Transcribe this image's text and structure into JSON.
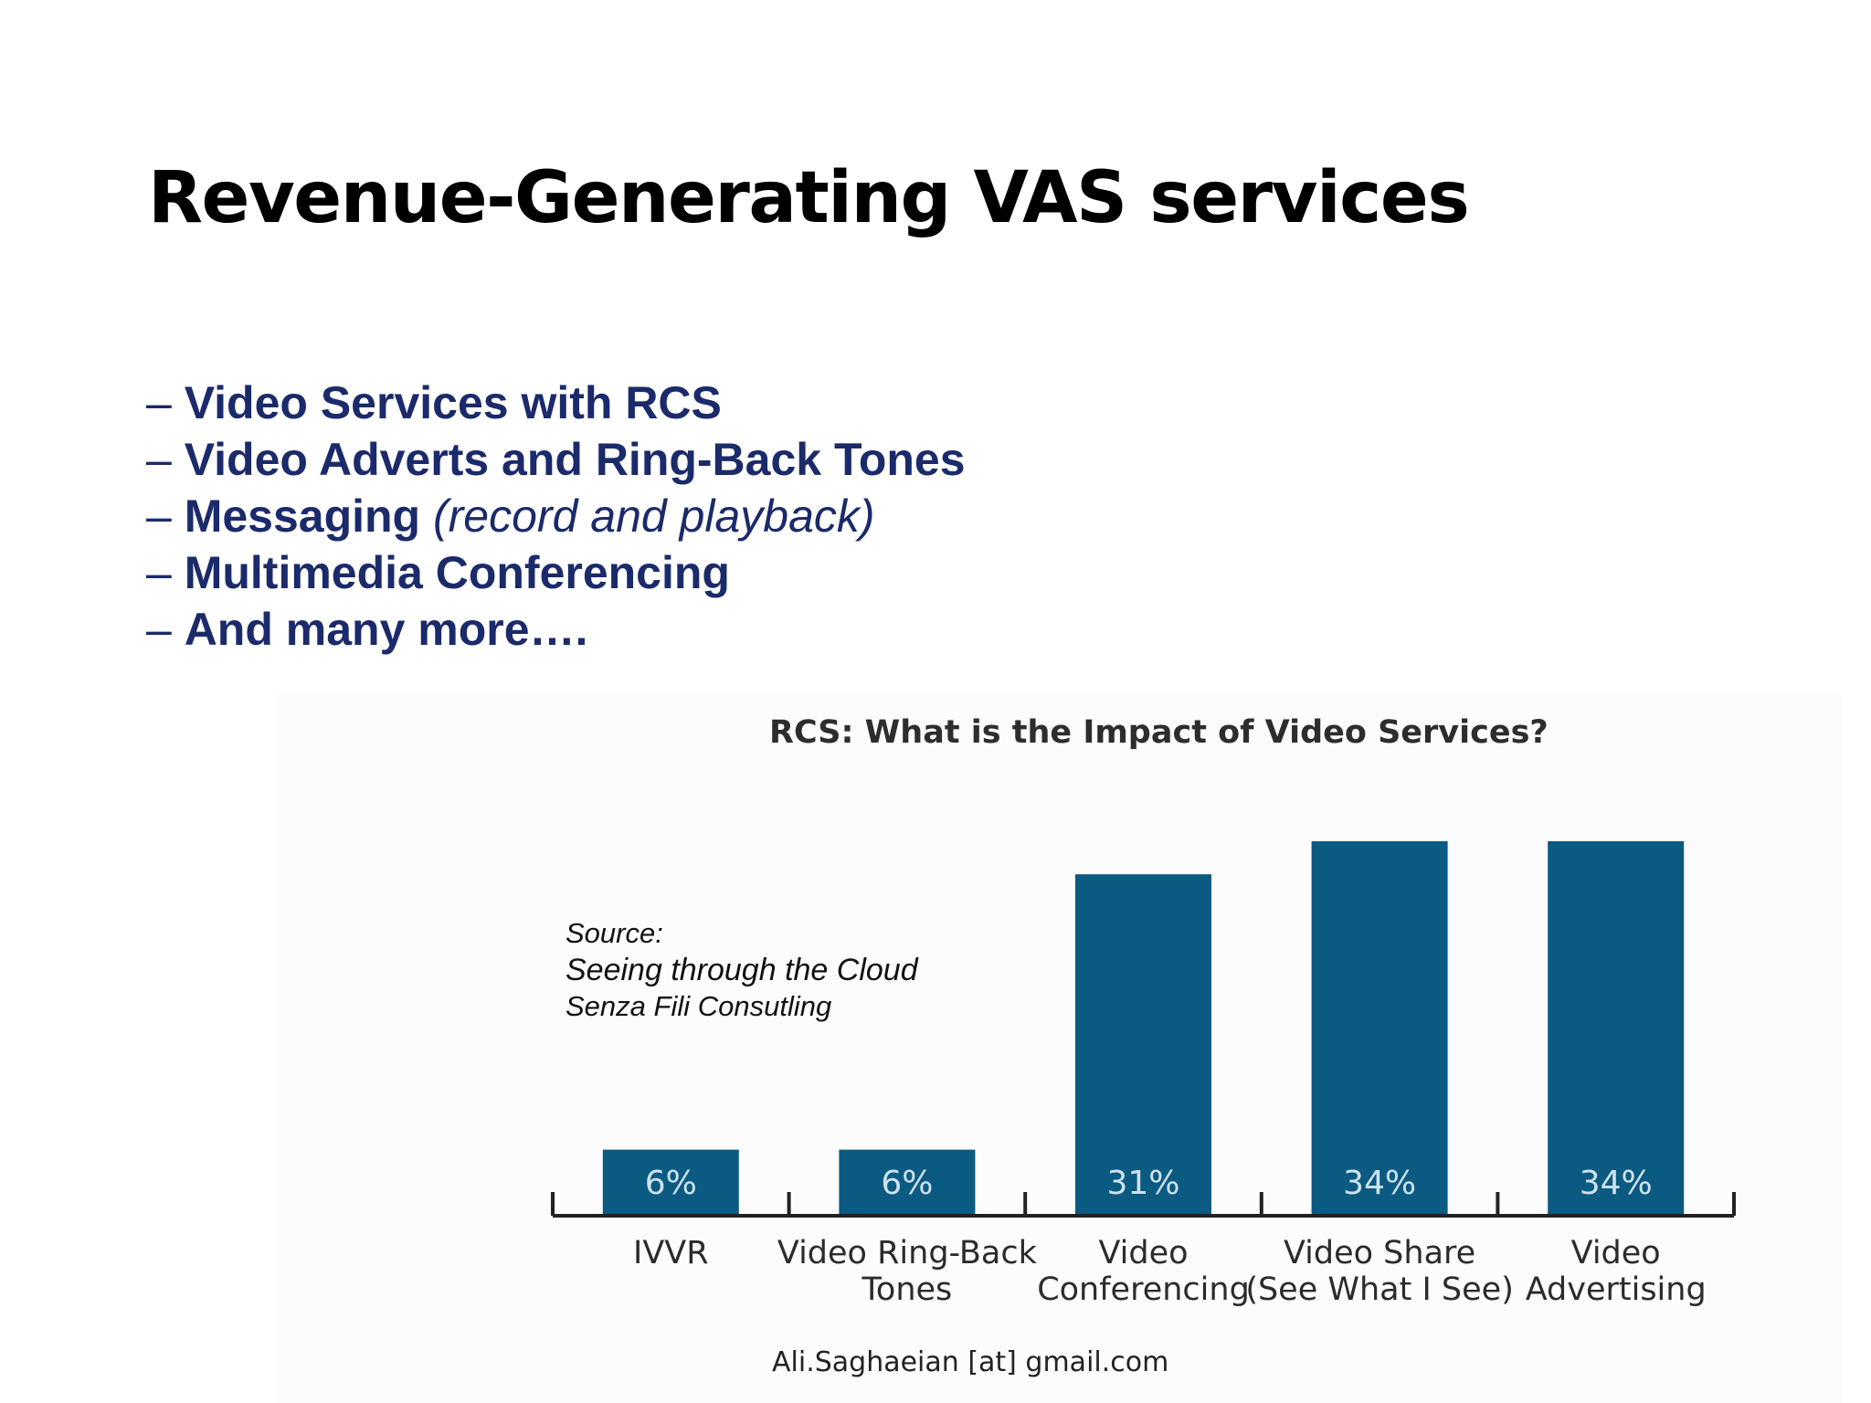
{
  "slide": {
    "title": "Revenue-Generating VAS services",
    "bullets": [
      {
        "dash": "– ",
        "strong": "Video Services with RCS",
        "em": ""
      },
      {
        "dash": "– ",
        "strong": "Video Adverts and Ring-Back Tones",
        "em": ""
      },
      {
        "dash": "– ",
        "strong": "Messaging",
        "em": " (record and playback)"
      },
      {
        "dash": "– ",
        "strong": "Multimedia Conferencing",
        "em": ""
      },
      {
        "dash": "– ",
        "strong": "And many more….",
        "em": ""
      }
    ],
    "source": {
      "label": "Source:",
      "line1": "Seeing through the Cloud",
      "line2": "Senza Fili Consutling"
    },
    "footer": "Ali.Saghaeian [at] gmail.com"
  },
  "chart_data": {
    "type": "bar",
    "title": "RCS: What is the Impact of Video Services?",
    "categories": [
      [
        "IVVR"
      ],
      [
        "Video Ring-Back",
        "Tones"
      ],
      [
        "Video",
        "Conferencing"
      ],
      [
        "Video Share",
        "(See What I See)"
      ],
      [
        "Video",
        "Advertising"
      ]
    ],
    "values": [
      6,
      6,
      31,
      34,
      34
    ],
    "data_labels": [
      "6%",
      "6%",
      "31%",
      "34%",
      "34%"
    ],
    "bar_color": "#0b5a82",
    "label_color": "#cfe3ee",
    "tick_label_color": "#2b2b2b",
    "ylim": [
      0,
      34
    ],
    "grid": false,
    "legend": "none"
  }
}
